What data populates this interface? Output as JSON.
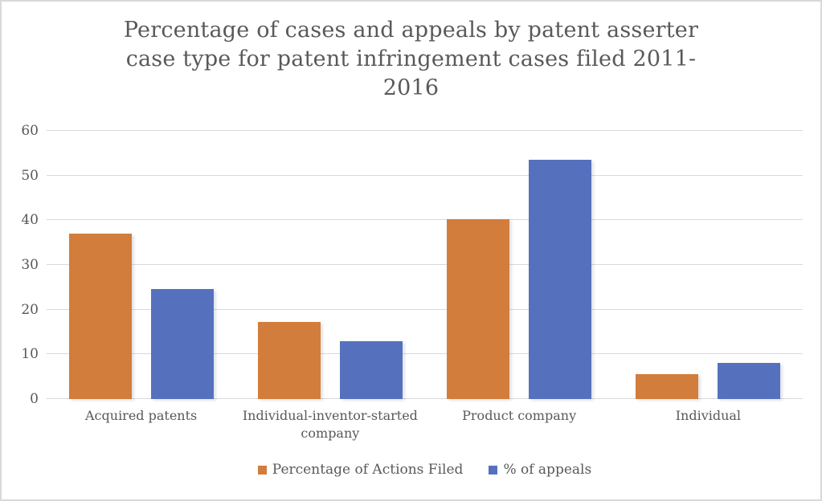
{
  "window": {
    "background_color": "#ffffff",
    "border_color": "#d9d9d9"
  },
  "colors": {
    "text": "#595959",
    "gridline": "#d9d9d9",
    "series_orange": "#d27d3b",
    "series_blue": "#5571be"
  },
  "chart_data": {
    "type": "bar",
    "title": "Percentage of cases and appeals by patent asserter case type for patent infringement cases filed 2011-2016",
    "title_lines": [
      "Percentage of cases and appeals by patent asserter",
      "case type for patent infringement cases filed 2011-",
      "2016"
    ],
    "categories": [
      "Acquired patents",
      "Individual-inventor-started company",
      "Product company",
      "Individual"
    ],
    "category_label_lines": [
      [
        "Acquired patents"
      ],
      [
        "Individual-inventor-started",
        "company"
      ],
      [
        "Product company"
      ],
      [
        "Individual"
      ]
    ],
    "series": [
      {
        "name": "Percentage of Actions Filed",
        "color": "#d27d3b",
        "values": [
          37,
          17.2,
          40.3,
          5.6
        ]
      },
      {
        "name": "% of appeals",
        "color": "#5571be",
        "values": [
          24.7,
          13,
          53.6,
          8
        ]
      }
    ],
    "xlabel": "",
    "ylabel": "",
    "ylim": [
      0,
      60
    ],
    "y_ticks": [
      0,
      10,
      20,
      30,
      40,
      50,
      60
    ],
    "grid": "horizontal",
    "legend_position": "bottom"
  }
}
